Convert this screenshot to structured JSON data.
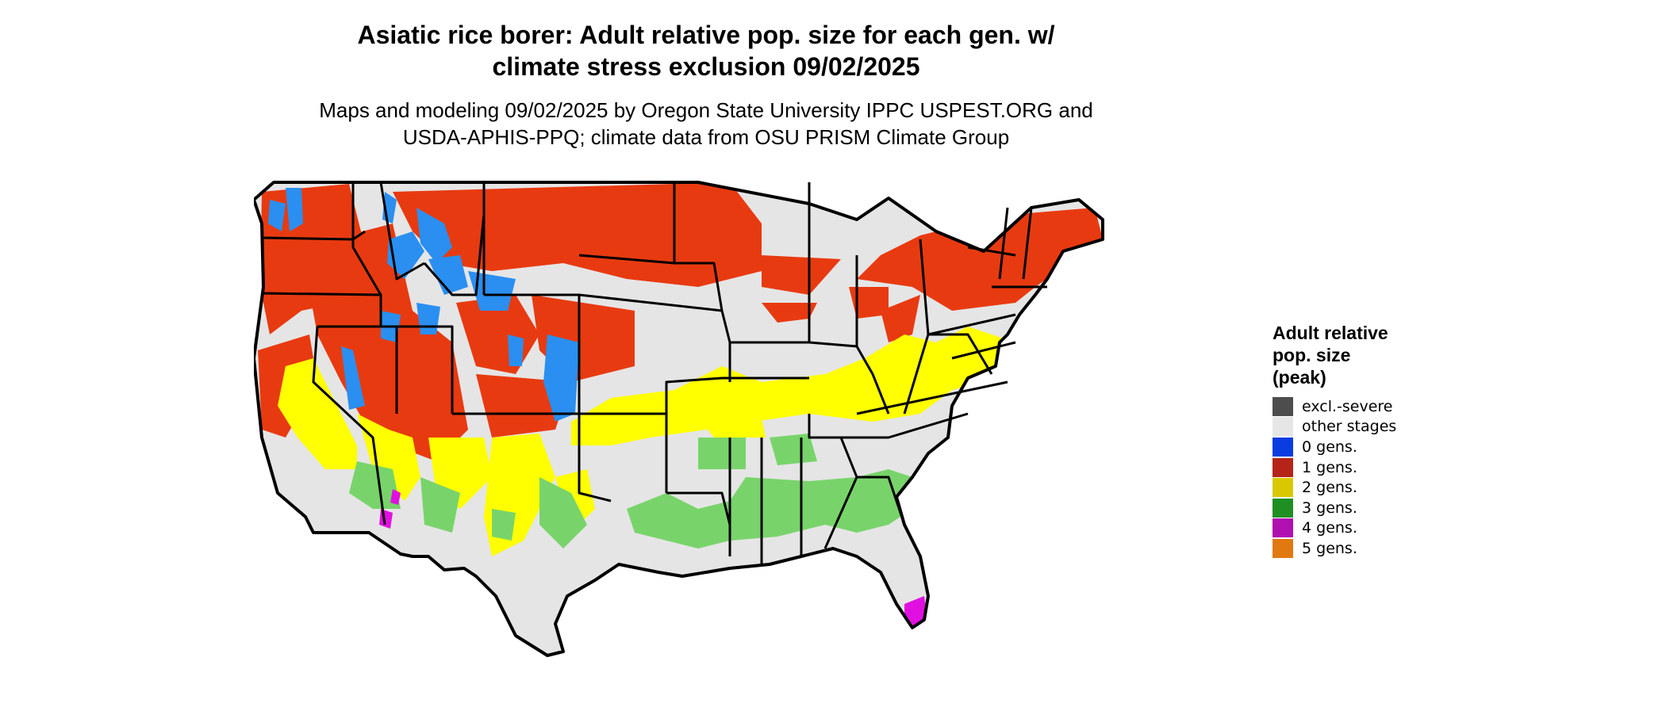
{
  "title_line1": "Asiatic rice borer: Adult relative pop. size for each gen. w/",
  "title_line2": "climate stress exclusion 09/02/2025",
  "subtitle_line1": "Maps and modeling 09/02/2025 by Oregon State University IPPC USPEST.ORG and",
  "subtitle_line2": "USDA-APHIS-PPQ; climate data from OSU PRISM Climate Group",
  "legend": {
    "title_line1": "Adult relative",
    "title_line2": "pop. size",
    "title_line3": "(peak)",
    "items": [
      {
        "label": "excl.-severe",
        "color": "#4d4d4d"
      },
      {
        "label": "other stages",
        "color": "#e6e6e6"
      },
      {
        "label": "0 gens.",
        "color": "#0a3ce0"
      },
      {
        "label": "1 gens.",
        "color": "#b52418"
      },
      {
        "label": "2 gens.",
        "color": "#d9c800"
      },
      {
        "label": "3 gens.",
        "color": "#1f8f24"
      },
      {
        "label": "4 gens.",
        "color": "#b010b0"
      },
      {
        "label": "5 gens.",
        "color": "#e07a10"
      }
    ]
  },
  "map_colors": {
    "background_land": "#e5e5e5",
    "zero_gens_map": "#2a8ff0",
    "one_gen_map": "#e83a10",
    "two_gens_map": "#ffff00",
    "three_gens_map": "#78d46a",
    "four_gens_map": "#e010e0",
    "border": "#000000"
  }
}
